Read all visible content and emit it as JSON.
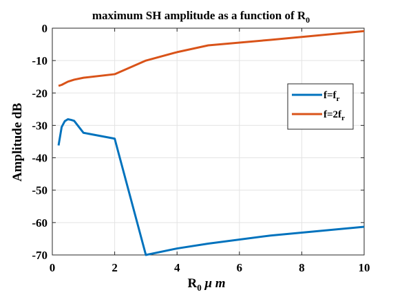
{
  "chart_data": {
    "type": "line",
    "title": "maximum SH amplitude as a function of R",
    "title_sub": "0",
    "xlabel_main": "R",
    "xlabel_sub": "0",
    "xlabel_rest": " μ m",
    "ylabel": "Amplitude dB",
    "xlim": [
      0,
      10
    ],
    "ylim": [
      -70,
      0
    ],
    "xticks": [
      "0",
      "2",
      "4",
      "6",
      "8",
      "10"
    ],
    "yticks": [
      "0",
      "-10",
      "-20",
      "-30",
      "-40",
      "-50",
      "-60",
      "-70"
    ],
    "grid": true,
    "legend_position": "right",
    "series": [
      {
        "name": "f=f",
        "name_sub": "r",
        "color": "#0072BD",
        "x": [
          0.2,
          0.3,
          0.4,
          0.5,
          0.6,
          0.7,
          1.0,
          2.0,
          3.0,
          4.0,
          5.0,
          7.0,
          10.0
        ],
        "y": [
          -36.2,
          -30.5,
          -28.7,
          -28.1,
          -28.3,
          -28.6,
          -32.3,
          -34.1,
          -70.0,
          -68.0,
          -66.5,
          -64.0,
          -61.3
        ]
      },
      {
        "name": "f=2f",
        "name_sub": "r",
        "color": "#D95319",
        "x": [
          0.2,
          0.3,
          0.5,
          0.7,
          1.0,
          2.0,
          3.0,
          4.0,
          5.0,
          7.0,
          10.0
        ],
        "y": [
          -17.8,
          -17.5,
          -16.5,
          -15.9,
          -15.3,
          -14.2,
          -10.0,
          -7.4,
          -5.3,
          -3.6,
          -0.9
        ]
      }
    ]
  }
}
